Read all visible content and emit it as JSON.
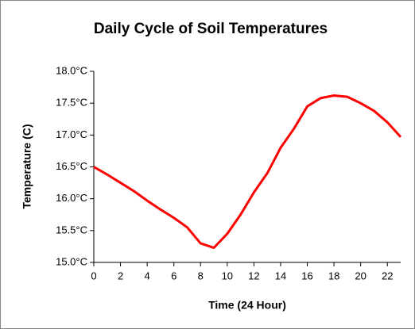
{
  "chart_data": {
    "type": "line",
    "title": "Daily Cycle of Soil Temperatures",
    "xlabel": "Time (24 Hour)",
    "ylabel": "Temperature (C)",
    "x": [
      0,
      1,
      2,
      3,
      4,
      5,
      6,
      7,
      8,
      9,
      10,
      11,
      12,
      13,
      14,
      15,
      16,
      17,
      18,
      19,
      20,
      21,
      22,
      23
    ],
    "series": [
      {
        "color": "#ff0000",
        "values": [
          16.5,
          16.38,
          16.25,
          16.12,
          15.97,
          15.83,
          15.7,
          15.55,
          15.3,
          15.23,
          15.45,
          15.75,
          16.1,
          16.4,
          16.8,
          17.1,
          17.45,
          17.58,
          17.62,
          17.6,
          17.5,
          17.38,
          17.2,
          16.97
        ]
      }
    ],
    "xlim": [
      0,
      23
    ],
    "xticks": [
      0,
      2,
      4,
      6,
      8,
      10,
      12,
      14,
      16,
      18,
      20,
      22
    ],
    "ylim": [
      15,
      18
    ],
    "yticks": [
      {
        "value": 15,
        "label": "15.0°C"
      },
      {
        "value": 15.5,
        "label": "15.5°C"
      },
      {
        "value": 16,
        "label": "16.0°C"
      },
      {
        "value": 16.5,
        "label": "16.5°C"
      },
      {
        "value": 17,
        "label": "17.0°C"
      },
      {
        "value": 17.5,
        "label": "17.5°C"
      },
      {
        "value": 18,
        "label": "18.0°C"
      }
    ],
    "grid": false
  }
}
